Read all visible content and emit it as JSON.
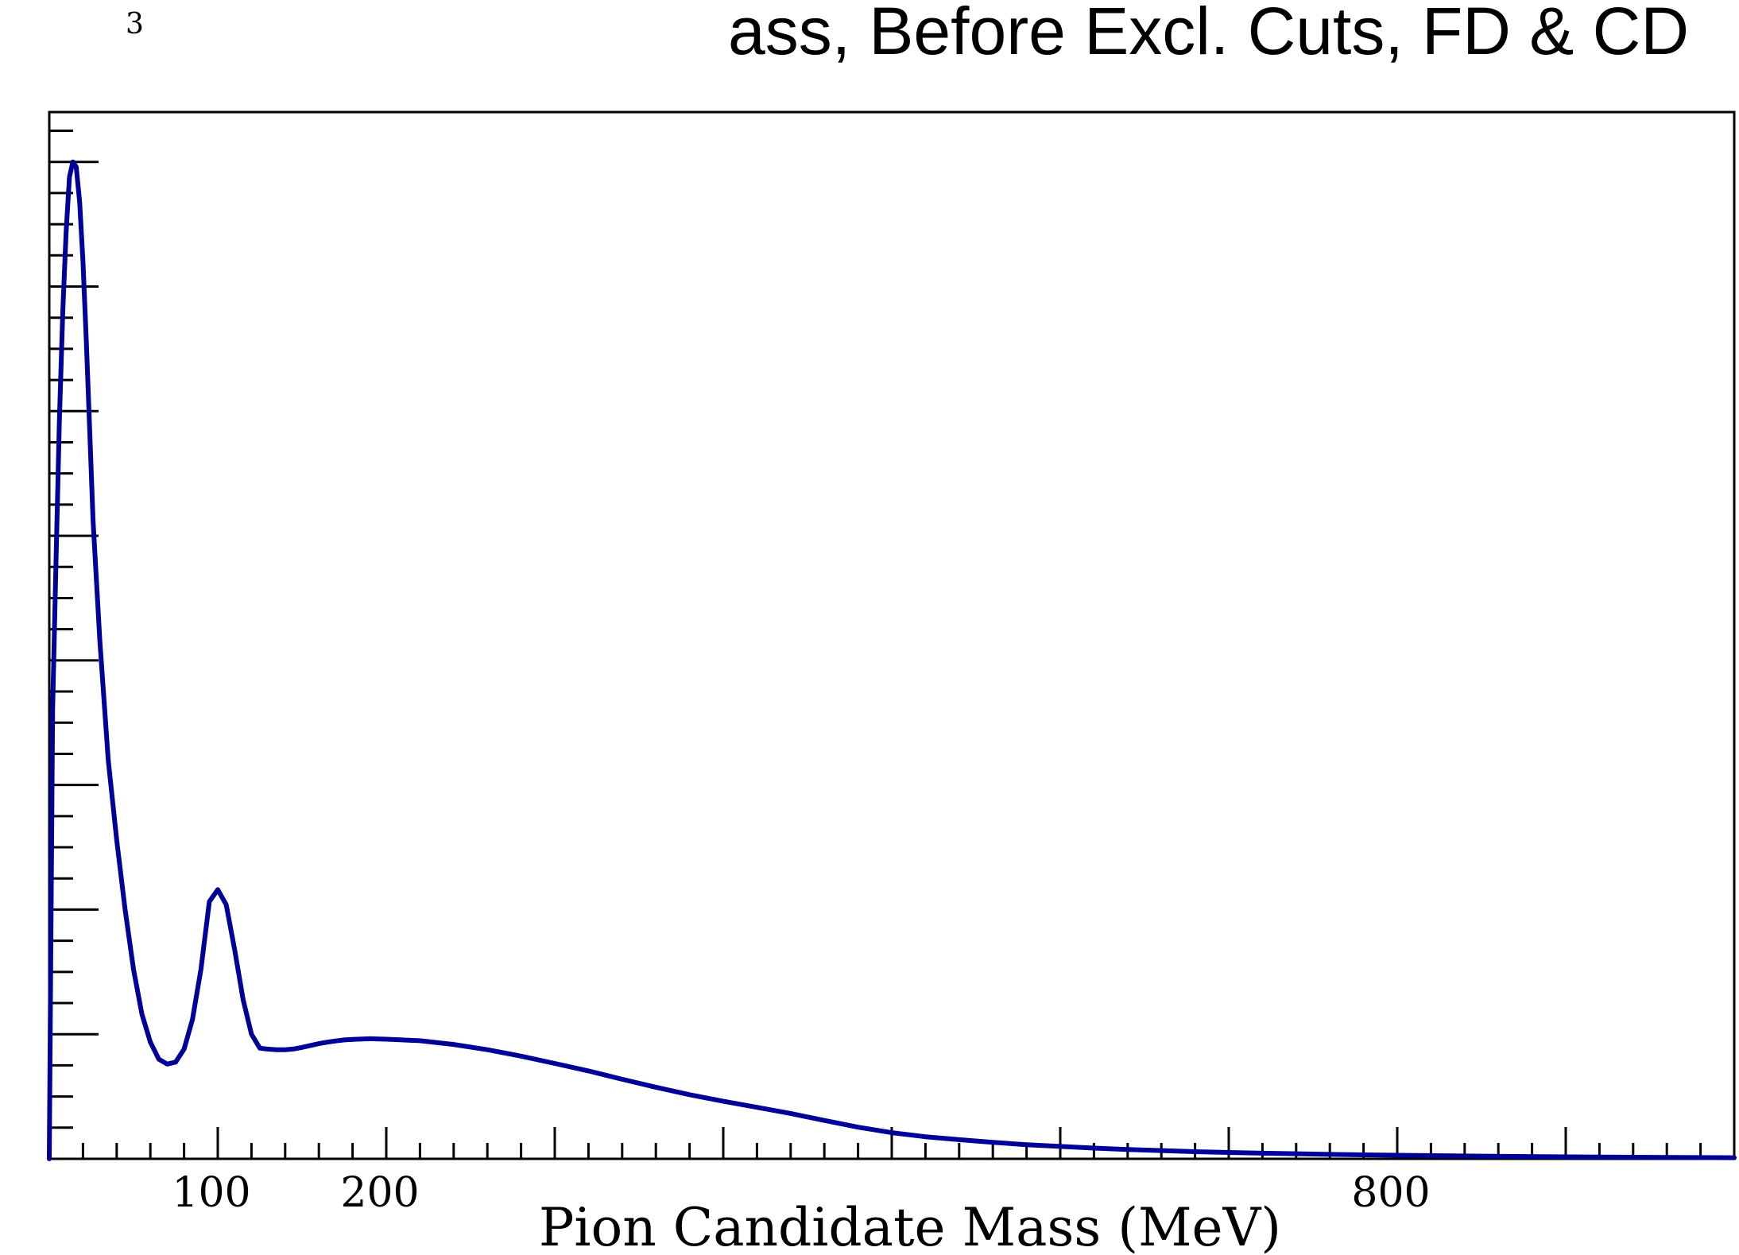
{
  "chart_data": {
    "type": "line",
    "title": "Pion Mass, Before Excl. Cuts, FD & CD",
    "title_visible": "ass, Before Excl. Cuts, FD & CD",
    "y_exponent_label": "3",
    "xlabel": "Pion Candidate Mass (MeV)",
    "ylabel": "",
    "xlim": [
      0,
      1000
    ],
    "ylim": [
      0,
      1.05
    ],
    "x_tick_labels": [
      {
        "value": 100,
        "label": "100"
      },
      {
        "value": 200,
        "label": "200"
      },
      {
        "value": 800,
        "label": "800"
      }
    ],
    "x_major_ticks": [
      100,
      200,
      300,
      400,
      500,
      600,
      700,
      800,
      900
    ],
    "x_minor_step": 20,
    "y_major_step": 0.125,
    "y_minor_step": 0.03125,
    "grid": false,
    "legend": "none",
    "line_color": "#000099",
    "series": [
      {
        "x": [
          0,
          2,
          4,
          6,
          8,
          10,
          12,
          14,
          16,
          18,
          20,
          22,
          24,
          26,
          30,
          35,
          40,
          45,
          50,
          55,
          60,
          65,
          70,
          75,
          80,
          85,
          90,
          95,
          100,
          105,
          110,
          115,
          120,
          125,
          130,
          135,
          140,
          145,
          150,
          155,
          160,
          165,
          170,
          175,
          180,
          190,
          200,
          220,
          240,
          260,
          280,
          300,
          320,
          340,
          360,
          380,
          400,
          420,
          440,
          460,
          480,
          500,
          520,
          540,
          560,
          580,
          600,
          620,
          640,
          660,
          680,
          700,
          720,
          740,
          760,
          780,
          800,
          850,
          900,
          950,
          1000
        ],
        "y": [
          0.0,
          0.45,
          0.6,
          0.74,
          0.85,
          0.93,
          0.985,
          1.0,
          0.995,
          0.96,
          0.9,
          0.82,
          0.73,
          0.64,
          0.52,
          0.4,
          0.32,
          0.25,
          0.19,
          0.145,
          0.117,
          0.1,
          0.095,
          0.097,
          0.11,
          0.14,
          0.19,
          0.258,
          0.27,
          0.255,
          0.21,
          0.16,
          0.125,
          0.111,
          0.11,
          0.1095,
          0.1095,
          0.1102,
          0.1118,
          0.1137,
          0.1155,
          0.117,
          0.1182,
          0.1193,
          0.1198,
          0.1205,
          0.12,
          0.1185,
          0.1147,
          0.1095,
          0.103,
          0.0957,
          0.0882,
          0.0798,
          0.0718,
          0.0643,
          0.0577,
          0.0517,
          0.0455,
          0.0385,
          0.0317,
          0.0262,
          0.0222,
          0.0192,
          0.0165,
          0.0142,
          0.0124,
          0.0108,
          0.0094,
          0.0083,
          0.0072,
          0.0064,
          0.0057,
          0.0051,
          0.0045,
          0.004,
          0.0036,
          0.0027,
          0.002,
          0.0015,
          0.0011
        ]
      }
    ]
  }
}
